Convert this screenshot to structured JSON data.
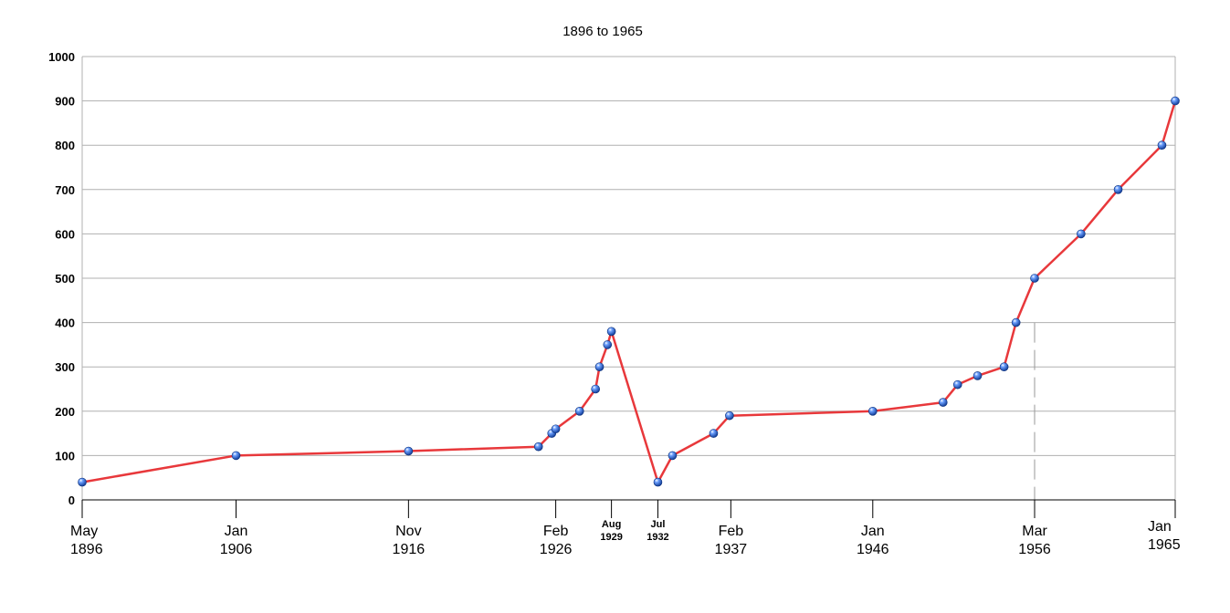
{
  "chart_data": {
    "type": "line",
    "title": "1896 to 1965",
    "xlabel": "",
    "ylabel": "",
    "ylim": [
      0,
      1000
    ],
    "yticks": [
      0,
      100,
      200,
      300,
      400,
      500,
      600,
      700,
      800,
      900,
      1000
    ],
    "grid": "horizontal",
    "colors": {
      "line": "#e8383b",
      "marker": "#1f5fd1",
      "grid": "#b0b0b0",
      "axis": "#000000",
      "reference_line": "#999999"
    },
    "x_ticks": [
      {
        "date": "1896-05",
        "month": "May",
        "year": "1896",
        "size": "large"
      },
      {
        "date": "1906-01",
        "month": "Jan",
        "year": "1906",
        "size": "large"
      },
      {
        "date": "1916-11",
        "month": "Nov",
        "year": "1916",
        "size": "large"
      },
      {
        "date": "1926-02",
        "month": "Feb",
        "year": "1926",
        "size": "large"
      },
      {
        "date": "1929-08",
        "month": "Aug",
        "year": "1929",
        "size": "small"
      },
      {
        "date": "1932-07",
        "month": "Jul",
        "year": "1932",
        "size": "small"
      },
      {
        "date": "1937-02",
        "month": "Feb",
        "year": "1937",
        "size": "large"
      },
      {
        "date": "1946-01",
        "month": "Jan",
        "year": "1946",
        "size": "large"
      },
      {
        "date": "1956-03",
        "month": "Mar",
        "year": "1956",
        "size": "large"
      },
      {
        "date": "1965-01",
        "month": "Jan",
        "year": "1965",
        "size": "large"
      }
    ],
    "reference_lines": [
      {
        "date": "1956-03",
        "from": 0,
        "to": 400,
        "style": "dashed"
      }
    ],
    "series": [
      {
        "points": [
          {
            "x": "1896-05",
            "y": 40
          },
          {
            "x": "1906-01",
            "y": 100
          },
          {
            "x": "1916-11",
            "y": 110
          },
          {
            "x": "1925-01",
            "y": 120
          },
          {
            "x": "1925-11",
            "y": 150
          },
          {
            "x": "1926-02",
            "y": 160
          },
          {
            "x": "1927-08",
            "y": 200
          },
          {
            "x": "1928-08",
            "y": 250
          },
          {
            "x": "1928-11",
            "y": 300
          },
          {
            "x": "1929-05",
            "y": 350
          },
          {
            "x": "1929-08",
            "y": 380
          },
          {
            "x": "1932-07",
            "y": 40
          },
          {
            "x": "1933-06",
            "y": 100
          },
          {
            "x": "1936-01",
            "y": 150
          },
          {
            "x": "1937-01",
            "y": 190
          },
          {
            "x": "1946-01",
            "y": 200
          },
          {
            "x": "1950-06",
            "y": 220
          },
          {
            "x": "1951-05",
            "y": 260
          },
          {
            "x": "1952-08",
            "y": 280
          },
          {
            "x": "1954-04",
            "y": 300
          },
          {
            "x": "1955-01",
            "y": 400
          },
          {
            "x": "1956-03",
            "y": 500
          },
          {
            "x": "1959-02",
            "y": 600
          },
          {
            "x": "1961-06",
            "y": 700
          },
          {
            "x": "1964-03",
            "y": 800
          },
          {
            "x": "1965-01",
            "y": 900
          }
        ]
      }
    ]
  }
}
